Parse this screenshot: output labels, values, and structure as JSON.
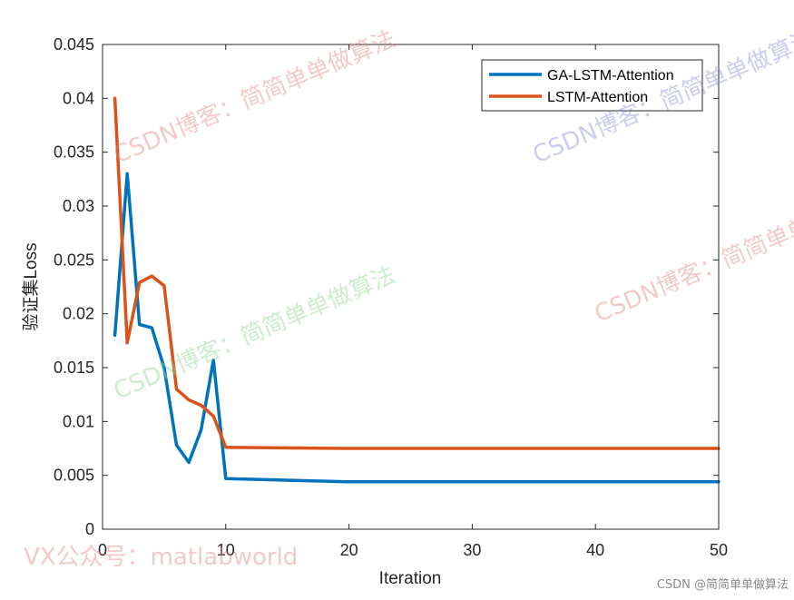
{
  "chart_data": {
    "type": "line",
    "title": "",
    "xlabel": "Iteration",
    "ylabel": "验证集Loss",
    "xlim": [
      0,
      50
    ],
    "ylim": [
      0,
      0.045
    ],
    "xticks": [
      0,
      10,
      20,
      30,
      40,
      50
    ],
    "yticks": [
      0,
      0.005,
      0.01,
      0.015,
      0.02,
      0.025,
      0.03,
      0.035,
      0.04,
      0.045
    ],
    "xtick_labels": [
      "0",
      "10",
      "20",
      "30",
      "40",
      "50"
    ],
    "ytick_labels": [
      "0",
      "0.005",
      "0.01",
      "0.015",
      "0.02",
      "0.025",
      "0.03",
      "0.035",
      "0.04",
      "0.045"
    ],
    "grid": false,
    "legend_position": "top-right",
    "series": [
      {
        "name": "GA-LSTM-Attention",
        "color": "#0072BD",
        "x": [
          1,
          2,
          3,
          4,
          5,
          6,
          7,
          8,
          9,
          10,
          20,
          30,
          40,
          50
        ],
        "y": [
          0.018,
          0.033,
          0.019,
          0.0187,
          0.015,
          0.0078,
          0.0062,
          0.0092,
          0.0157,
          0.0047,
          0.0044,
          0.0044,
          0.0044,
          0.0044
        ]
      },
      {
        "name": "LSTM-Attention",
        "color": "#D95319",
        "x": [
          1,
          2,
          3,
          4,
          5,
          6,
          7,
          8,
          9,
          10,
          20,
          30,
          40,
          50
        ],
        "y": [
          0.04,
          0.0173,
          0.0229,
          0.0235,
          0.0226,
          0.013,
          0.012,
          0.0115,
          0.0105,
          0.0076,
          0.0075,
          0.0075,
          0.0075,
          0.0075
        ]
      }
    ]
  },
  "watermarks": [
    {
      "text": "CSDN博客：简简单单做算法",
      "color": "#e38a8a"
    },
    {
      "text": "CSDN博客：简简单单做算法",
      "color": "#8f8fd6"
    },
    {
      "text": "CSDN博客：简简单单做算法",
      "color": "#8fd68f"
    },
    {
      "text": "CSDN博客：简简单单做算法",
      "color": "#e38a8a"
    },
    {
      "text": "VX公众号：matlabworld",
      "color": "#e38a8a"
    }
  ],
  "credit": "CSDN @简简单单做算法"
}
